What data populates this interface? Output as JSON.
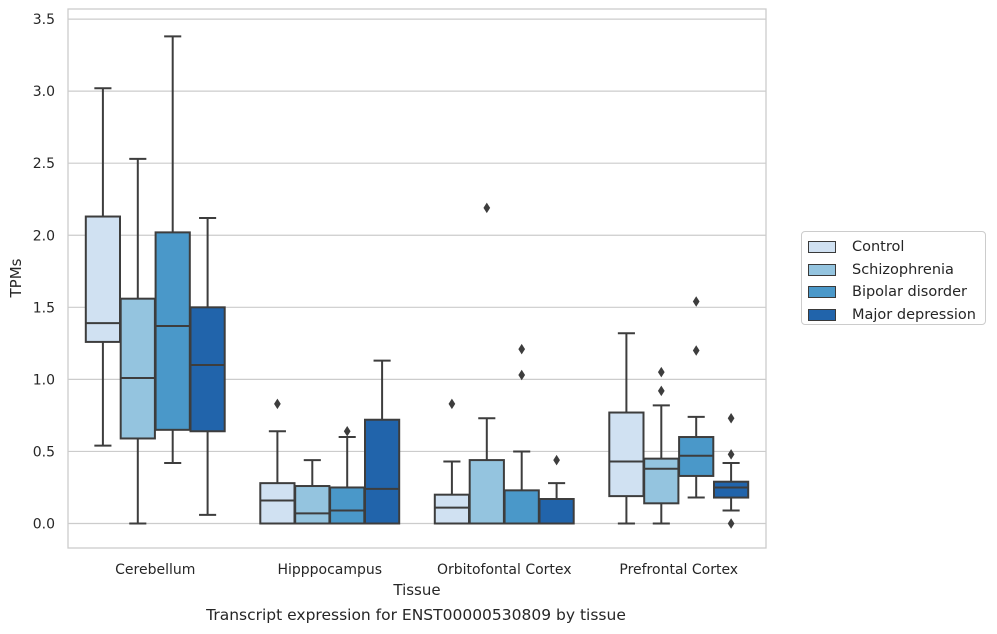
{
  "chart_data": {
    "type": "boxplot",
    "xlabel": "Tissue",
    "ylabel": "TPMs",
    "caption": "Transcript expression for ENST00000530809 by tissue",
    "categories": [
      "Cerebellum",
      "Hipppocampus",
      "Orbitofontal Cortex",
      "Prefrontal Cortex"
    ],
    "yticks": [
      "0.0",
      "0.5",
      "1.0",
      "1.5",
      "2.0",
      "2.5",
      "3.0",
      "3.5"
    ],
    "ylim": [
      -0.17,
      3.57
    ],
    "grid": true,
    "legend_position": "right",
    "series": [
      {
        "name": "Control",
        "color": "#d0e1f2",
        "boxes": [
          {
            "whislo": 0.54,
            "q1": 1.26,
            "med": 1.39,
            "q3": 2.13,
            "whishi": 3.02,
            "fliers": []
          },
          {
            "whislo": 0.0,
            "q1": 0.0,
            "med": 0.16,
            "q3": 0.28,
            "whishi": 0.64,
            "fliers": [
              0.83
            ]
          },
          {
            "whislo": 0.0,
            "q1": 0.0,
            "med": 0.11,
            "q3": 0.2,
            "whishi": 0.43,
            "fliers": [
              0.83
            ]
          },
          {
            "whislo": 0.0,
            "q1": 0.19,
            "med": 0.43,
            "q3": 0.77,
            "whishi": 1.32,
            "fliers": []
          }
        ]
      },
      {
        "name": "Schizophrenia",
        "color": "#94c4df",
        "boxes": [
          {
            "whislo": 0.0,
            "q1": 0.59,
            "med": 1.01,
            "q3": 1.56,
            "whishi": 2.53,
            "fliers": []
          },
          {
            "whislo": 0.0,
            "q1": 0.0,
            "med": 0.07,
            "q3": 0.26,
            "whishi": 0.44,
            "fliers": []
          },
          {
            "whislo": 0.0,
            "q1": 0.0,
            "med": 0.0,
            "q3": 0.44,
            "whishi": 0.73,
            "fliers": [
              2.19
            ]
          },
          {
            "whislo": 0.0,
            "q1": 0.14,
            "med": 0.38,
            "q3": 0.45,
            "whishi": 0.82,
            "fliers": [
              0.92,
              1.05
            ]
          }
        ]
      },
      {
        "name": "Bipolar disorder",
        "color": "#4a98c9",
        "boxes": [
          {
            "whislo": 0.42,
            "q1": 0.65,
            "med": 1.37,
            "q3": 2.02,
            "whishi": 3.38,
            "fliers": []
          },
          {
            "whislo": 0.0,
            "q1": 0.0,
            "med": 0.09,
            "q3": 0.25,
            "whishi": 0.6,
            "fliers": [
              0.64
            ]
          },
          {
            "whislo": 0.0,
            "q1": 0.0,
            "med": 0.0,
            "q3": 0.23,
            "whishi": 0.5,
            "fliers": [
              1.03,
              1.21
            ]
          },
          {
            "whislo": 0.18,
            "q1": 0.33,
            "med": 0.47,
            "q3": 0.6,
            "whishi": 0.74,
            "fliers": [
              1.2,
              1.54
            ]
          }
        ]
      },
      {
        "name": "Major depression",
        "color": "#2164ab",
        "boxes": [
          {
            "whislo": 0.06,
            "q1": 0.64,
            "med": 1.1,
            "q3": 1.5,
            "whishi": 2.12,
            "fliers": []
          },
          {
            "whislo": 0.0,
            "q1": 0.0,
            "med": 0.24,
            "q3": 0.72,
            "whishi": 1.13,
            "fliers": []
          },
          {
            "whislo": 0.0,
            "q1": 0.0,
            "med": 0.0,
            "q3": 0.17,
            "whishi": 0.28,
            "fliers": [
              0.44
            ]
          },
          {
            "whislo": 0.09,
            "q1": 0.18,
            "med": 0.25,
            "q3": 0.29,
            "whishi": 0.42,
            "fliers": [
              0.0,
              0.48,
              0.73
            ]
          }
        ]
      }
    ]
  }
}
